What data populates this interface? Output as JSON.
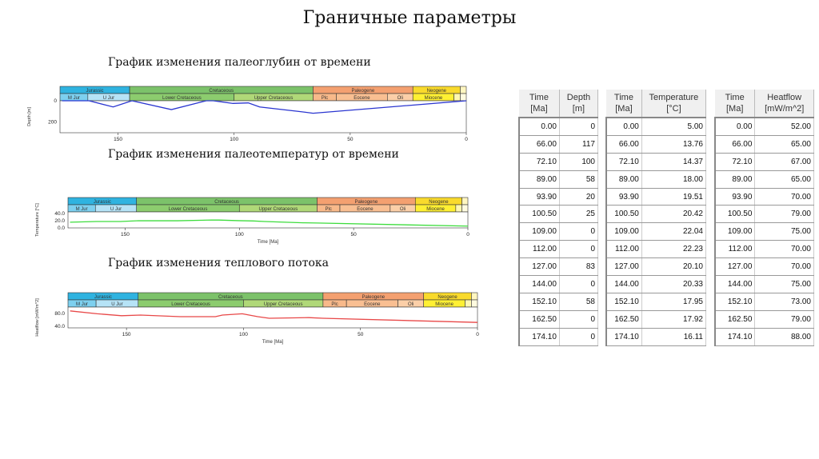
{
  "title": "Граничные параметры",
  "subtitles": [
    "График изменения палеоглубин от времени",
    "График изменения палеотемператур от времени",
    "График изменения теплового потока"
  ],
  "periods": [
    {
      "name": "Jurassic",
      "from": 175,
      "to": 145,
      "color": "#2fb3e0"
    },
    {
      "name": "Cretaceous",
      "from": 145,
      "to": 66,
      "color": "#7cc26a"
    },
    {
      "name": "Paleogene",
      "from": 66,
      "to": 23,
      "color": "#f4a070"
    },
    {
      "name": "Neogene",
      "from": 23,
      "to": 2.6,
      "color": "#f9da2c"
    },
    {
      "name": "",
      "from": 2.6,
      "to": 0,
      "color": "#fff6c0"
    }
  ],
  "epochs": [
    {
      "name": "M Jur",
      "from": 175,
      "to": 163,
      "color": "#7dd0ef"
    },
    {
      "name": "U Jur",
      "from": 163,
      "to": 145,
      "color": "#b6e3f6"
    },
    {
      "name": "Lower Cretaceous",
      "from": 145,
      "to": 100,
      "color": "#8ccc6e"
    },
    {
      "name": "Upper Cretaceous",
      "from": 100,
      "to": 66,
      "color": "#b0d878"
    },
    {
      "name": "Plc",
      "from": 66,
      "to": 56,
      "color": "#f8b98a"
    },
    {
      "name": "Eocene",
      "from": 56,
      "to": 34,
      "color": "#f9bf92"
    },
    {
      "name": "Oli",
      "from": 34,
      "to": 23,
      "color": "#fbcfa8"
    },
    {
      "name": "Miocene",
      "from": 23,
      "to": 5.3,
      "color": "#fff033"
    },
    {
      "name": "",
      "from": 5.3,
      "to": 2.6,
      "color": "#fff7b0"
    },
    {
      "name": "",
      "from": 2.6,
      "to": 0,
      "color": "#fffbe0"
    }
  ],
  "x_ticks": [
    150,
    100,
    50,
    0
  ],
  "x_label": "Time [Ma]",
  "chart_data": [
    {
      "type": "line",
      "ylabel": "Depth [m]",
      "y_ticks": [
        "0",
        "200"
      ],
      "y_tick_values": [
        0,
        200
      ],
      "ylim": [
        0,
        300
      ],
      "inverted": true,
      "color": "#2a35d0",
      "x": [
        0,
        66,
        72.1,
        89,
        93.9,
        100.5,
        109,
        112,
        127,
        144,
        152.1,
        162.5,
        174.1
      ],
      "y": [
        0,
        117,
        100,
        58,
        20,
        25,
        0,
        0,
        83,
        0,
        58,
        0,
        0
      ]
    },
    {
      "type": "line",
      "ylabel": "Temperature [°C]",
      "y_ticks": [
        "40.0",
        "20.0",
        "0.0"
      ],
      "y_tick_values": [
        40,
        20,
        0
      ],
      "ylim": [
        0,
        45
      ],
      "inverted": false,
      "color": "#3ddc3d",
      "x": [
        0,
        66,
        72.1,
        89,
        93.9,
        100.5,
        109,
        112,
        127,
        144,
        152.1,
        162.5,
        174.1
      ],
      "y": [
        5,
        13.76,
        14.37,
        18,
        19.51,
        20.42,
        22.04,
        22.23,
        20.1,
        20.33,
        17.95,
        17.92,
        16.11
      ]
    },
    {
      "type": "line",
      "ylabel": "Heatflow [mW/m^2]",
      "y_ticks": [
        "80.0",
        "40.0"
      ],
      "y_tick_values": [
        80,
        40
      ],
      "ylim": [
        35,
        100
      ],
      "inverted": false,
      "color": "#e84848",
      "x": [
        0,
        66,
        72.1,
        89,
        93.9,
        100.5,
        109,
        112,
        127,
        144,
        152.1,
        162.5,
        174.1
      ],
      "y": [
        52,
        65,
        67,
        65,
        70,
        79,
        75,
        70,
        70,
        75,
        73,
        79,
        88
      ]
    }
  ],
  "tables": [
    {
      "headers": [
        [
          "Time",
          "[Ma]"
        ],
        [
          "Depth",
          "[m]"
        ]
      ],
      "rows": [
        [
          "0.00",
          "0"
        ],
        [
          "66.00",
          "117"
        ],
        [
          "72.10",
          "100"
        ],
        [
          "89.00",
          "58"
        ],
        [
          "93.90",
          "20"
        ],
        [
          "100.50",
          "25"
        ],
        [
          "109.00",
          "0"
        ],
        [
          "112.00",
          "0"
        ],
        [
          "127.00",
          "83"
        ],
        [
          "144.00",
          "0"
        ],
        [
          "152.10",
          "58"
        ],
        [
          "162.50",
          "0"
        ],
        [
          "174.10",
          "0"
        ]
      ]
    },
    {
      "headers": [
        [
          "Time",
          "[Ma]"
        ],
        [
          "Temperature",
          "[°C]"
        ]
      ],
      "rows": [
        [
          "0.00",
          "5.00"
        ],
        [
          "66.00",
          "13.76"
        ],
        [
          "72.10",
          "14.37"
        ],
        [
          "89.00",
          "18.00"
        ],
        [
          "93.90",
          "19.51"
        ],
        [
          "100.50",
          "20.42"
        ],
        [
          "109.00",
          "22.04"
        ],
        [
          "112.00",
          "22.23"
        ],
        [
          "127.00",
          "20.10"
        ],
        [
          "144.00",
          "20.33"
        ],
        [
          "152.10",
          "17.95"
        ],
        [
          "162.50",
          "17.92"
        ],
        [
          "174.10",
          "16.11"
        ]
      ]
    },
    {
      "headers": [
        [
          "Time",
          "[Ma]"
        ],
        [
          "Heatflow",
          "[mW/m^2]"
        ]
      ],
      "rows": [
        [
          "0.00",
          "52.00"
        ],
        [
          "66.00",
          "65.00"
        ],
        [
          "72.10",
          "67.00"
        ],
        [
          "89.00",
          "65.00"
        ],
        [
          "93.90",
          "70.00"
        ],
        [
          "100.50",
          "79.00"
        ],
        [
          "109.00",
          "75.00"
        ],
        [
          "112.00",
          "70.00"
        ],
        [
          "127.00",
          "70.00"
        ],
        [
          "144.00",
          "75.00"
        ],
        [
          "152.10",
          "73.00"
        ],
        [
          "162.50",
          "79.00"
        ],
        [
          "174.10",
          "88.00"
        ]
      ]
    }
  ]
}
